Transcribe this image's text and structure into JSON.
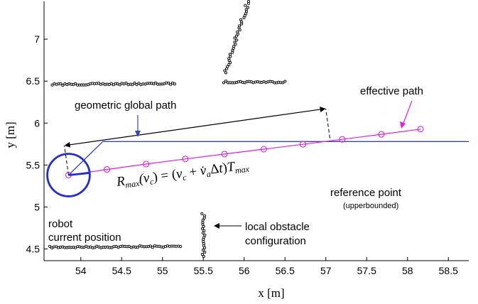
{
  "chart_data": {
    "type": "scatter",
    "xlabel": "x [m]",
    "ylabel": "y [m]",
    "xlim": [
      53.55,
      58.75
    ],
    "ylim": [
      4.36,
      7.45
    ],
    "x_ticks": [
      "54",
      "54.5",
      "55",
      "55.5",
      "56",
      "56.5",
      "57",
      "57.5",
      "58",
      "58.5"
    ],
    "y_ticks": [
      "4.5",
      "5",
      "5.5",
      "6",
      "6.5",
      "7"
    ],
    "grid": false,
    "colors": {
      "axes": "#000000",
      "obstacles": "#000000",
      "global_path": "#3344cc",
      "effective_path": "#e020e0",
      "robot": "#1f2ed6"
    },
    "global_path": {
      "x": [
        53.85,
        54.27,
        58.75
      ],
      "y": [
        5.38,
        5.78,
        5.78
      ]
    },
    "effective_path": {
      "x": [
        53.85,
        54.32,
        54.8,
        55.28,
        55.76,
        56.24,
        56.72,
        57.2,
        57.68,
        58.16
      ],
      "y": [
        5.38,
        5.447,
        5.511,
        5.572,
        5.631,
        5.689,
        5.747,
        5.806,
        5.866,
        5.928
      ]
    },
    "robot": {
      "x": 53.85,
      "y": 5.38,
      "radius": 0.26
    },
    "radius_segment": {
      "x": [
        53.85,
        57.05
      ],
      "y": [
        5.38,
        5.82
      ]
    },
    "obstacles": [
      {
        "x": [
          53.62,
          55.22
        ],
        "y": [
          4.52,
          4.53
        ]
      },
      {
        "x": [
          55.5,
          55.5
        ],
        "y": [
          4.41,
          4.92
        ]
      },
      {
        "x": [
          53.65,
          55.15
        ],
        "y": [
          6.46,
          6.47
        ]
      },
      {
        "x": [
          55.75,
          56.5
        ],
        "y": [
          6.49,
          6.49
        ]
      },
      {
        "x": [
          55.77,
          56.05
        ],
        "y": [
          6.6,
          7.45
        ]
      }
    ],
    "annotations": {
      "effective_path": "effective path",
      "global_path": "geometric global path",
      "formula": "R_max(v_c) = (v_c + v̇_a Δt)T_max",
      "reference_point": "reference point",
      "reference_point_note": "(upperbounded)",
      "robot_line1": "robot",
      "robot_line2": "current position",
      "obstacle_line1": "local obstacle",
      "obstacle_line2": "configuration"
    }
  }
}
